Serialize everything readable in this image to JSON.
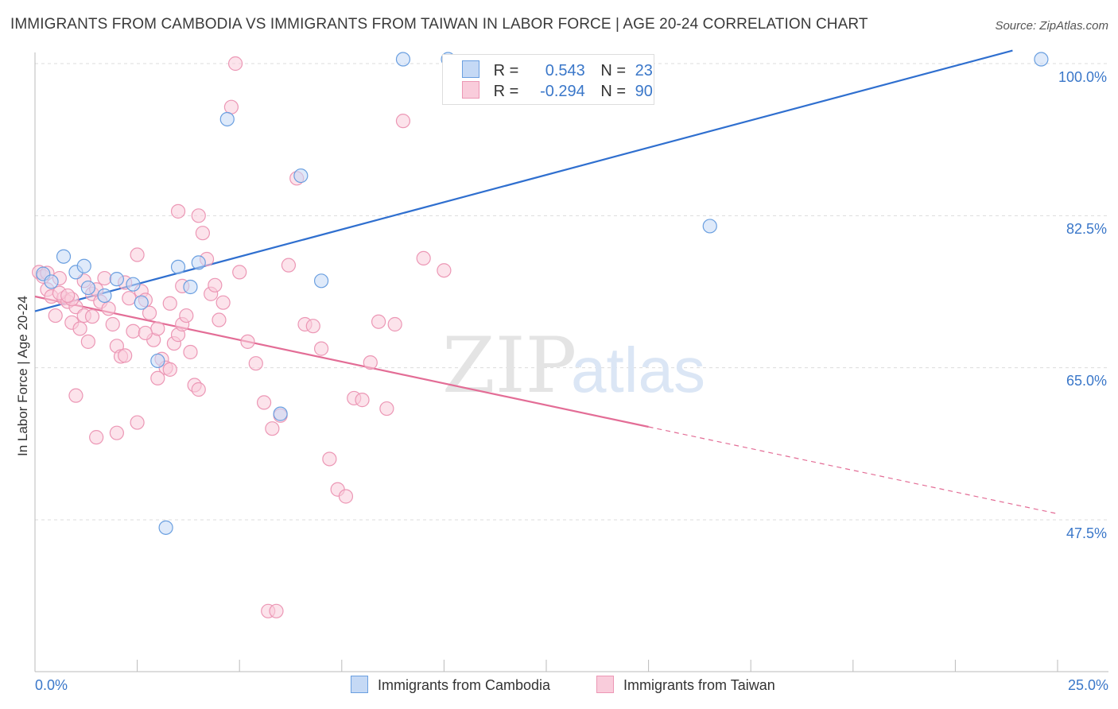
{
  "header": {
    "title": "IMMIGRANTS FROM CAMBODIA VS IMMIGRANTS FROM TAIWAN IN LABOR FORCE | AGE 20-24 CORRELATION CHART",
    "source": "Source: ZipAtlas.com"
  },
  "watermark": {
    "zip": "ZIP",
    "atlas": "atlas"
  },
  "legend": {
    "rows": [
      {
        "r_label": "R =",
        "r_value": "0.543",
        "n_label": "N =",
        "n_value": "23",
        "color": "#6a9fe0"
      },
      {
        "r_label": "R =",
        "r_value": "-0.294",
        "n_label": "N =",
        "n_value": "90",
        "color": "#f0a0bc"
      }
    ]
  },
  "colors": {
    "cambodia_fill": "#c5d9f5",
    "cambodia_stroke": "#6a9fe0",
    "cambodia_line": "#2f6fcf",
    "taiwan_fill": "#f9ccdb",
    "taiwan_stroke": "#ec97b5",
    "taiwan_line": "#e36d96",
    "grid": "#dcdcdc",
    "tick_label": "#3a77c9"
  },
  "chart_data": {
    "type": "scatter",
    "title": "IMMIGRANTS FROM CAMBODIA VS IMMIGRANTS FROM TAIWAN IN LABOR FORCE | AGE 20-24 CORRELATION CHART",
    "xlabel": "",
    "ylabel": "In Labor Force | Age 20-24",
    "xlim": [
      0,
      25
    ],
    "ylim": [
      32,
      102
    ],
    "x_tick_labels": [
      "0.0%",
      "25.0%"
    ],
    "y_ticks": [
      47.5,
      65.0,
      82.5,
      100.0
    ],
    "y_tick_labels": [
      "47.5%",
      "65.0%",
      "82.5%",
      "100.0%"
    ],
    "grid": true,
    "series": [
      {
        "name": "Immigrants from Cambodia",
        "color": "#6a9fe0",
        "trend": {
          "x": [
            0.0,
            23.9
          ],
          "y": [
            71.5,
            101.5
          ]
        },
        "points": [
          [
            0.2,
            75.8
          ],
          [
            0.4,
            74.9
          ],
          [
            0.7,
            77.8
          ],
          [
            1.0,
            76.0
          ],
          [
            1.2,
            76.7
          ],
          [
            1.3,
            74.2
          ],
          [
            1.7,
            73.3
          ],
          [
            2.0,
            75.2
          ],
          [
            2.4,
            74.6
          ],
          [
            2.6,
            72.5
          ],
          [
            3.0,
            65.8
          ],
          [
            3.5,
            76.6
          ],
          [
            3.8,
            74.3
          ],
          [
            4.0,
            77.1
          ],
          [
            4.7,
            93.6
          ],
          [
            6.0,
            59.7
          ],
          [
            6.5,
            87.1
          ],
          [
            7.0,
            75.0
          ],
          [
            9.0,
            100.5
          ],
          [
            10.1,
            100.5
          ],
          [
            16.5,
            81.3
          ],
          [
            24.6,
            100.5
          ],
          [
            3.2,
            46.6
          ]
        ]
      },
      {
        "name": "Immigrants from Taiwan",
        "color": "#f0a0bc",
        "trend": {
          "x": [
            0.0,
            15.0
          ],
          "y": [
            73.2,
            58.2
          ]
        },
        "trend_extension": {
          "x": [
            15.0,
            25.0
          ],
          "y": [
            58.2,
            48.2
          ]
        },
        "points": [
          [
            0.1,
            76.0
          ],
          [
            0.2,
            75.5
          ],
          [
            0.3,
            74.0
          ],
          [
            0.4,
            73.2
          ],
          [
            0.5,
            71.0
          ],
          [
            0.6,
            75.3
          ],
          [
            0.7,
            73.0
          ],
          [
            0.8,
            72.6
          ],
          [
            0.9,
            70.2
          ],
          [
            1.0,
            72.0
          ],
          [
            1.1,
            69.5
          ],
          [
            1.2,
            71.0
          ],
          [
            1.3,
            68.0
          ],
          [
            1.4,
            73.5
          ],
          [
            1.5,
            74.0
          ],
          [
            1.6,
            72.6
          ],
          [
            1.7,
            75.3
          ],
          [
            1.8,
            71.8
          ],
          [
            1.9,
            70.0
          ],
          [
            2.0,
            67.5
          ],
          [
            2.1,
            66.3
          ],
          [
            2.2,
            74.8
          ],
          [
            2.3,
            73.0
          ],
          [
            2.4,
            69.2
          ],
          [
            2.5,
            78.0
          ],
          [
            2.6,
            73.8
          ],
          [
            2.7,
            72.8
          ],
          [
            2.8,
            71.3
          ],
          [
            2.9,
            68.2
          ],
          [
            3.0,
            69.5
          ],
          [
            3.1,
            66.0
          ],
          [
            3.2,
            65.0
          ],
          [
            3.3,
            64.8
          ],
          [
            3.4,
            67.8
          ],
          [
            3.5,
            68.8
          ],
          [
            3.6,
            70.0
          ],
          [
            3.7,
            71.0
          ],
          [
            3.8,
            66.8
          ],
          [
            3.9,
            63.0
          ],
          [
            4.0,
            62.5
          ],
          [
            4.1,
            80.5
          ],
          [
            4.2,
            77.5
          ],
          [
            4.3,
            73.5
          ],
          [
            4.4,
            74.5
          ],
          [
            4.5,
            70.5
          ],
          [
            4.6,
            72.5
          ],
          [
            4.8,
            95.0
          ],
          [
            4.9,
            100.0
          ],
          [
            5.0,
            76.0
          ],
          [
            5.2,
            68.0
          ],
          [
            5.4,
            65.5
          ],
          [
            5.6,
            61.0
          ],
          [
            5.8,
            58.0
          ],
          [
            6.0,
            59.5
          ],
          [
            6.2,
            76.8
          ],
          [
            6.4,
            86.8
          ],
          [
            6.6,
            70.0
          ],
          [
            6.8,
            69.8
          ],
          [
            7.0,
            67.2
          ],
          [
            7.2,
            54.5
          ],
          [
            7.4,
            51.0
          ],
          [
            7.6,
            50.2
          ],
          [
            7.8,
            61.5
          ],
          [
            8.0,
            61.3
          ],
          [
            8.2,
            65.6
          ],
          [
            8.4,
            70.3
          ],
          [
            8.6,
            60.3
          ],
          [
            8.8,
            70.0
          ],
          [
            9.0,
            93.4
          ],
          [
            9.5,
            77.6
          ],
          [
            10.0,
            76.2
          ],
          [
            1.0,
            61.8
          ],
          [
            1.5,
            57.0
          ],
          [
            2.0,
            57.5
          ],
          [
            2.5,
            58.7
          ],
          [
            3.0,
            63.8
          ],
          [
            3.5,
            83.0
          ],
          [
            4.0,
            82.5
          ],
          [
            0.6,
            73.6
          ],
          [
            0.9,
            72.9
          ],
          [
            1.4,
            70.9
          ],
          [
            2.7,
            69.0
          ],
          [
            3.3,
            72.4
          ],
          [
            3.6,
            74.4
          ],
          [
            5.7,
            37.0
          ],
          [
            5.9,
            37.0
          ],
          [
            0.3,
            75.9
          ],
          [
            0.8,
            73.3
          ],
          [
            1.2,
            75.0
          ],
          [
            2.2,
            66.4
          ]
        ]
      }
    ],
    "legend_position": "top-center"
  }
}
